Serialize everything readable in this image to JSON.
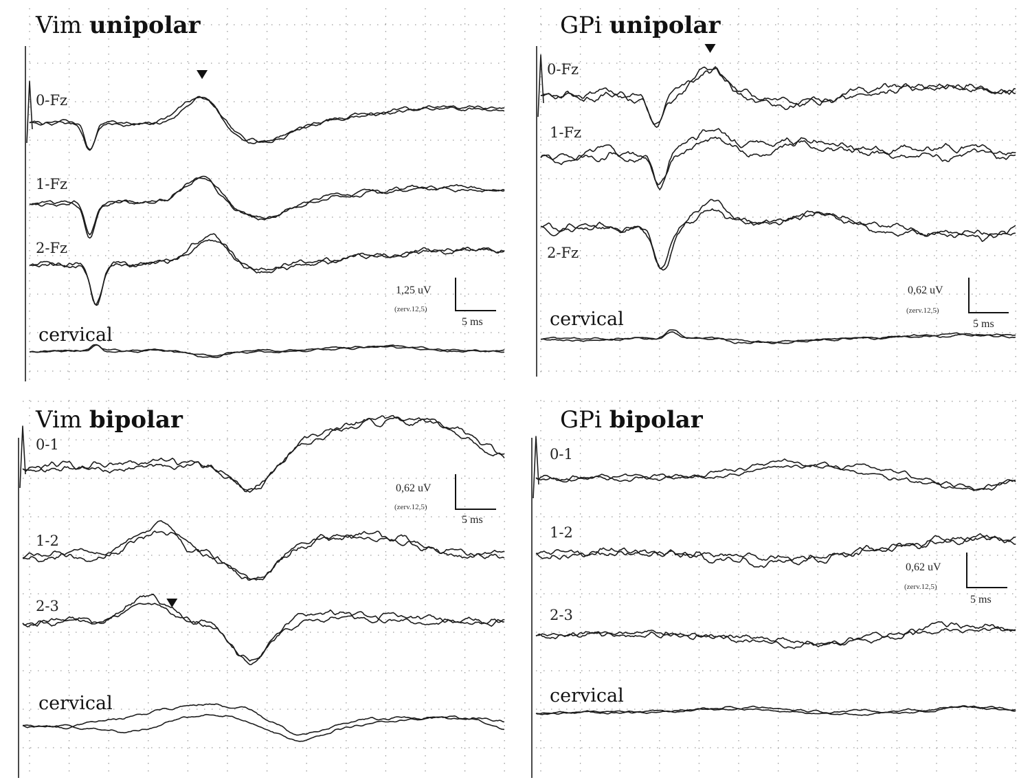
{
  "colors": {
    "background": "#ffffff",
    "trace": "#1c1c1c",
    "grid": "#9a9a9a",
    "text": "#111111"
  },
  "chart_data": [
    {
      "type": "line",
      "title": "Vim unipolar",
      "title_parts": [
        "Vim ",
        "unipolar"
      ],
      "grid": true,
      "xlim": [
        0,
        30
      ],
      "traces": [
        {
          "label": "0-Fz",
          "base": 0,
          "waves": [
            [
              3.8,
              -38,
              0.45
            ],
            [
              10.9,
              42,
              1.55
            ],
            [
              14.5,
              -28,
              2.8
            ],
            [
              27,
              20,
              8
            ]
          ],
          "noise": 5,
          "sep": 7
        },
        {
          "label": "1-Fz",
          "base": 0,
          "waves": [
            [
              3.8,
              -48,
              0.45
            ],
            [
              10.9,
              38,
              1.6
            ],
            [
              14.5,
              -26,
              2.6
            ],
            [
              27,
              22,
              8
            ]
          ],
          "noise": 6,
          "sep": 7
        },
        {
          "label": "2-Fz",
          "base": 0,
          "waves": [
            [
              4.2,
              -60,
              0.5
            ],
            [
              11.4,
              40,
              1.7
            ],
            [
              14.5,
              -10,
              2.6
            ],
            [
              27,
              22,
              8
            ]
          ],
          "noise": 6,
          "sep": 7
        },
        {
          "label": "cervical",
          "base": 0,
          "waves": [
            [
              4.2,
              8,
              0.4
            ],
            [
              11.4,
              -8,
              1.4
            ],
            [
              22,
              6,
              4
            ]
          ],
          "noise": 2.5,
          "sep": 5
        }
      ],
      "markers": [
        {
          "type": "triangle",
          "trace": 0,
          "x": 10.9
        }
      ],
      "scale_bar": {
        "amplitude": "1,25 uV",
        "gain": "(zerv.12,5)",
        "time": "5 ms"
      }
    },
    {
      "type": "line",
      "title": "GPi unipolar",
      "title_parts": [
        "GPi ",
        "unipolar"
      ],
      "grid": true,
      "xlim": [
        0,
        30
      ],
      "traces": [
        {
          "label": "0-Fz",
          "base": 0,
          "waves": [
            [
              7.3,
              -36,
              0.6
            ],
            [
              10.7,
              42,
              1.6
            ],
            [
              16,
              -10,
              3
            ],
            [
              27,
              10,
              6
            ]
          ],
          "noise": 9,
          "sep": 16
        },
        {
          "label": "1-Fz",
          "base": 0,
          "waves": [
            [
              7.5,
              -40,
              0.6
            ],
            [
              10.7,
              30,
              1.7
            ],
            [
              17,
              20,
              3
            ],
            [
              27,
              10,
              6
            ]
          ],
          "noise": 11,
          "sep": 20
        },
        {
          "label": "2-Fz",
          "base": 0,
          "waves": [
            [
              7.7,
              -60,
              0.7
            ],
            [
              10.7,
              30,
              1.5
            ],
            [
              17,
              16,
              3
            ],
            [
              27,
              -8,
              6
            ]
          ],
          "noise": 11,
          "sep": 20
        },
        {
          "label": "cervical",
          "base": 0,
          "waves": [
            [
              8.3,
              12,
              0.6
            ],
            [
              14,
              -6,
              2.5
            ],
            [
              27,
              5,
              6
            ]
          ],
          "noise": 3,
          "sep": 6
        }
      ],
      "markers": [
        {
          "type": "triangle",
          "trace": 0,
          "x": 10.7
        }
      ],
      "scale_bar": {
        "amplitude": "0,62 uV",
        "gain": "(zerv.12,5)",
        "time": "5 ms"
      }
    },
    {
      "type": "line",
      "title": "Vim bipolar",
      "title_parts": [
        "Vim ",
        "bipolar"
      ],
      "grid": true,
      "xlim": [
        0,
        30
      ],
      "traces": [
        {
          "label": "0-1",
          "base": 0,
          "waves": [
            [
              14.3,
              -38,
              1.8
            ],
            [
              21,
              60,
              5
            ],
            [
              26.5,
              40,
              4
            ]
          ],
          "noise": 9,
          "sep": 12
        },
        {
          "label": "1-2",
          "base": 0,
          "waves": [
            [
              8.4,
              40,
              2
            ],
            [
              14.4,
              -40,
              1.9
            ],
            [
              21,
              25,
              5
            ]
          ],
          "noise": 9,
          "sep": 16
        },
        {
          "label": "2-3",
          "base": 0,
          "waves": [
            [
              7.8,
              34,
              1.7
            ],
            [
              14.2,
              -60,
              1.8
            ],
            [
              21,
              10,
              5
            ]
          ],
          "noise": 9,
          "sep": 14
        },
        {
          "label": "cervical",
          "base": 0,
          "waves": [
            [
              11.5,
              25,
              3.5
            ],
            [
              17,
              -20,
              2.5
            ],
            [
              27,
              8,
              4
            ]
          ],
          "noise": 3,
          "sep": 28
        }
      ],
      "markers": [
        {
          "type": "triangle",
          "trace": 2,
          "x": 9.3
        }
      ],
      "scale_bar": {
        "amplitude": "0,62 uV",
        "gain": "(zerv.12,5)",
        "time": "5 ms"
      }
    },
    {
      "type": "line",
      "title": "GPi bipolar",
      "title_parts": [
        "GPi ",
        "bipolar"
      ],
      "grid": true,
      "xlim": [
        0,
        30
      ],
      "traces": [
        {
          "label": "0-1",
          "base": 0,
          "waves": [
            [
              17,
              18,
              5
            ],
            [
              27,
              -12,
              3
            ]
          ],
          "noise": 7,
          "sep": 14
        },
        {
          "label": "1-2",
          "base": 0,
          "waves": [
            [
              15,
              -8,
              5
            ],
            [
              27,
              20,
              5
            ]
          ],
          "noise": 9,
          "sep": 12
        },
        {
          "label": "2-3",
          "base": 0,
          "waves": [
            [
              17,
              -8,
              5
            ],
            [
              27,
              12,
              5
            ]
          ],
          "noise": 9,
          "sep": 10
        },
        {
          "label": "cervical",
          "base": 0,
          "waves": [
            [
              13,
              8,
              4
            ],
            [
              27,
              10,
              3
            ]
          ],
          "noise": 3,
          "sep": 6
        }
      ],
      "markers": [],
      "scale_bar": {
        "amplitude": "0,62 uV",
        "gain": "(zerv.12,5)",
        "time": "5 ms"
      }
    }
  ]
}
